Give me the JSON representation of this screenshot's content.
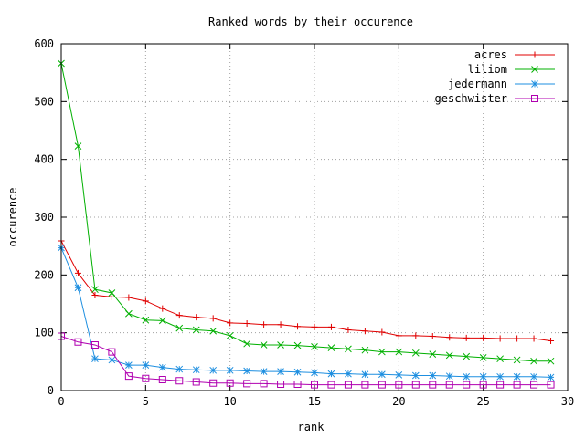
{
  "chart_data": {
    "type": "line",
    "title": "Ranked words by their occurence",
    "xlabel": "rank",
    "ylabel": "occurence",
    "xlim": [
      0,
      30
    ],
    "ylim": [
      0,
      600
    ],
    "xticks": [
      0,
      5,
      10,
      15,
      20,
      25,
      30
    ],
    "yticks": [
      0,
      100,
      200,
      300,
      400,
      500,
      600
    ],
    "grid": true,
    "legend_position": "top-right",
    "x": [
      0,
      1,
      2,
      3,
      4,
      5,
      6,
      7,
      8,
      9,
      10,
      11,
      12,
      13,
      14,
      15,
      16,
      17,
      18,
      19,
      20,
      21,
      22,
      23,
      24,
      25,
      26,
      27,
      28,
      29
    ],
    "series": [
      {
        "name": "acres",
        "color": "#e00000",
        "marker": "plus",
        "values": [
          259,
          203,
          165,
          162,
          161,
          155,
          142,
          130,
          127,
          125,
          117,
          116,
          114,
          114,
          111,
          110,
          110,
          105,
          103,
          101,
          95,
          95,
          94,
          92,
          91,
          91,
          90,
          90,
          90,
          86
        ]
      },
      {
        "name": "liliom",
        "color": "#00b000",
        "marker": "cross",
        "values": [
          566,
          423,
          175,
          169,
          133,
          122,
          121,
          108,
          105,
          103,
          95,
          81,
          79,
          79,
          78,
          76,
          74,
          72,
          70,
          67,
          67,
          65,
          63,
          61,
          59,
          57,
          55,
          53,
          51,
          51
        ]
      },
      {
        "name": "jedermann",
        "color": "#1e8fe0",
        "marker": "star",
        "values": [
          247,
          178,
          55,
          53,
          44,
          44,
          40,
          37,
          36,
          35,
          35,
          34,
          33,
          33,
          32,
          31,
          29,
          29,
          28,
          28,
          27,
          26,
          26,
          25,
          24,
          24,
          24,
          24,
          24,
          23
        ]
      },
      {
        "name": "geschwister",
        "color": "#b000b0",
        "marker": "square",
        "values": [
          94,
          84,
          79,
          67,
          25,
          21,
          19,
          17,
          15,
          13,
          13,
          12,
          12,
          11,
          11,
          10,
          10,
          10,
          10,
          10,
          10,
          10,
          10,
          10,
          10,
          10,
          10,
          10,
          10,
          10
        ]
      }
    ]
  }
}
